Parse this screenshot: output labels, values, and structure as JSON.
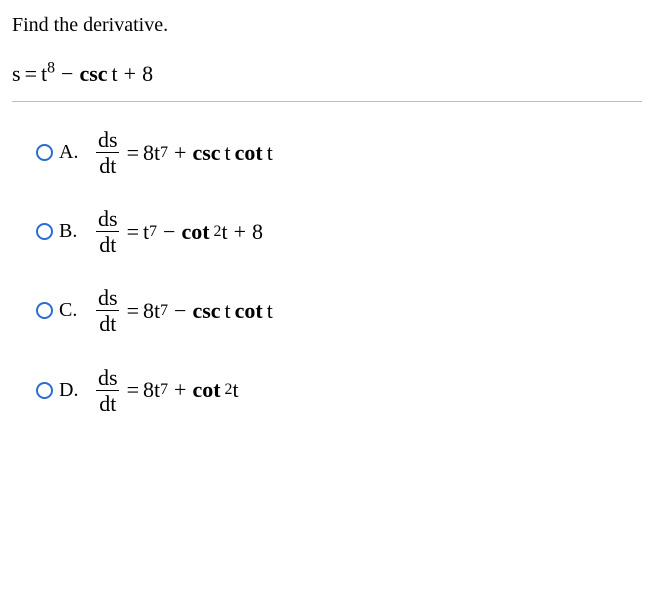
{
  "prompt": "Find the derivative.",
  "equation": {
    "lhs": "s",
    "eq": "=",
    "t": "t",
    "exp8": "8",
    "minus": "−",
    "csc": "csc",
    "tvar": "t",
    "plus": "+",
    "eight": "8"
  },
  "frac": {
    "num": "ds",
    "den": "dt"
  },
  "labels": {
    "A": "A.",
    "B": "B.",
    "C": "C.",
    "D": "D."
  },
  "optA": {
    "eq": "=",
    "coef": "8",
    "t": "t",
    "exp": "7",
    "plus": "+",
    "csc": "csc",
    "tv1": "t",
    "cot": "cot",
    "tv2": "t"
  },
  "optB": {
    "eq": "=",
    "t": "t",
    "exp": "7",
    "minus": "−",
    "cot": "cot",
    "sq": "2",
    "tv": "t",
    "plus": "+",
    "eight": "8"
  },
  "optC": {
    "eq": "=",
    "coef": "8",
    "t": "t",
    "exp": "7",
    "minus": "−",
    "csc": "csc",
    "tv1": "t",
    "cot": "cot",
    "tv2": "t"
  },
  "optD": {
    "eq": "=",
    "coef": "8",
    "t": "t",
    "exp": "7",
    "plus": "+",
    "cot": "cot",
    "sq": "2",
    "tv": "t"
  }
}
